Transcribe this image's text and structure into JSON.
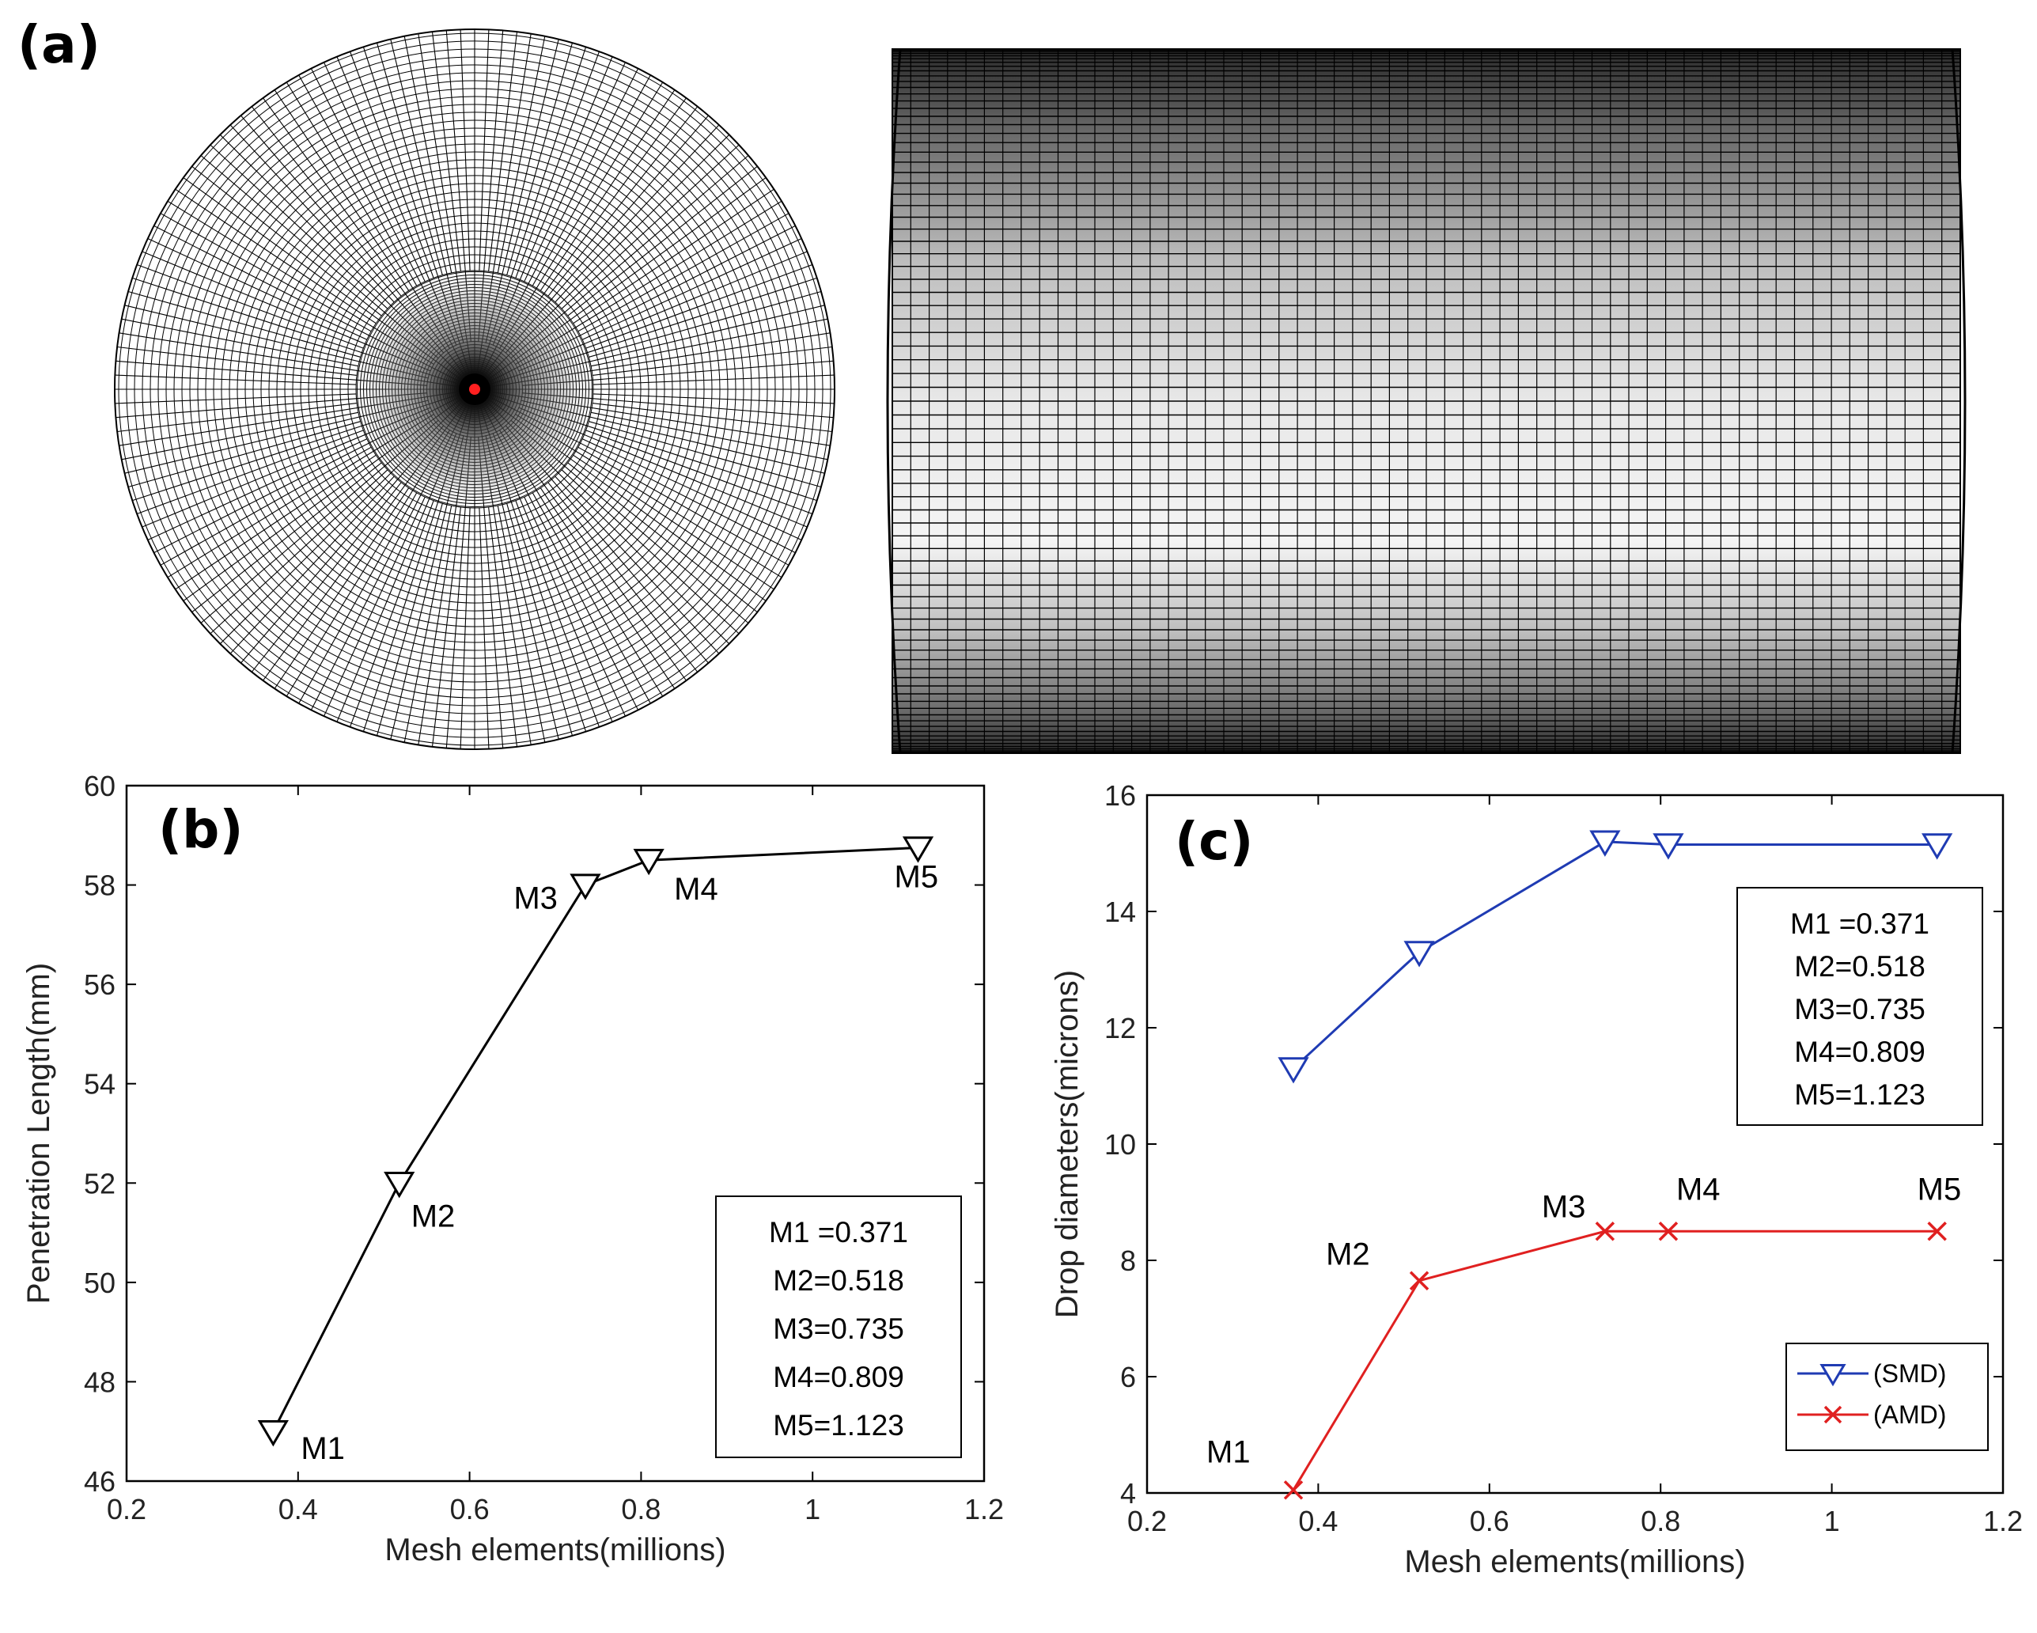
{
  "panels": {
    "a": "(a)",
    "b": "(b)",
    "c": "(c)"
  },
  "colors": {
    "b_series": "#000000",
    "smd": "#1f3bb3",
    "amd": "#e02020",
    "center_dot": "#ff2020"
  },
  "chart_data": [
    {
      "id": "b",
      "type": "line",
      "xlabel": "Mesh elements(millions)",
      "ylabel": "Penetration Length(mm)",
      "xlim": [
        0.2,
        1.2
      ],
      "ylim": [
        46,
        60
      ],
      "xticks": [
        0.2,
        0.4,
        0.6,
        0.8,
        1.0,
        1.2
      ],
      "xtick_labels": [
        "0.2",
        "0.4",
        "0.6",
        "0.8",
        "1",
        "1.2"
      ],
      "yticks": [
        46,
        48,
        50,
        52,
        54,
        56,
        58,
        60
      ],
      "ytick_labels": [
        "46",
        "48",
        "50",
        "52",
        "54",
        "56",
        "58",
        "60"
      ],
      "series": [
        {
          "name": "Penetration Length",
          "marker": "triangle-down",
          "x": [
            0.371,
            0.518,
            0.735,
            0.809,
            1.123
          ],
          "y": [
            47.0,
            52.0,
            58.0,
            58.5,
            58.75
          ],
          "point_labels": [
            "M1",
            "M2",
            "M3",
            "M4",
            "M5"
          ]
        }
      ],
      "annotation_box": [
        "M1 =0.371",
        "M2=0.518",
        "M3=0.735",
        "M4=0.809",
        "M5=1.123"
      ]
    },
    {
      "id": "c",
      "type": "line",
      "xlabel": "Mesh elements(millions)",
      "ylabel": "Drop diameters(microns)",
      "xlim": [
        0.2,
        1.2
      ],
      "ylim": [
        4,
        16
      ],
      "xticks": [
        0.2,
        0.4,
        0.6,
        0.8,
        1.0,
        1.2
      ],
      "xtick_labels": [
        "0.2",
        "0.4",
        "0.6",
        "0.8",
        "1",
        "1.2"
      ],
      "yticks": [
        4,
        6,
        8,
        10,
        12,
        14,
        16
      ],
      "ytick_labels": [
        "4",
        "6",
        "8",
        "10",
        "12",
        "14",
        "16"
      ],
      "series": [
        {
          "name": "(SMD)",
          "marker": "triangle-down",
          "x": [
            0.371,
            0.518,
            0.735,
            0.809,
            1.123
          ],
          "y": [
            11.3,
            13.3,
            15.2,
            15.15,
            15.15
          ]
        },
        {
          "name": "(AMD)",
          "marker": "x",
          "x": [
            0.371,
            0.518,
            0.735,
            0.809,
            1.123
          ],
          "y": [
            4.05,
            7.65,
            8.5,
            8.5,
            8.5
          ],
          "point_labels": [
            "M1",
            "M2",
            "M3",
            "M4",
            "M5"
          ]
        }
      ],
      "annotation_box": [
        "M1 =0.371",
        "M2=0.518",
        "M3=0.735",
        "M4=0.809",
        "M5=1.123"
      ],
      "legend_position": "bottom-right"
    }
  ]
}
